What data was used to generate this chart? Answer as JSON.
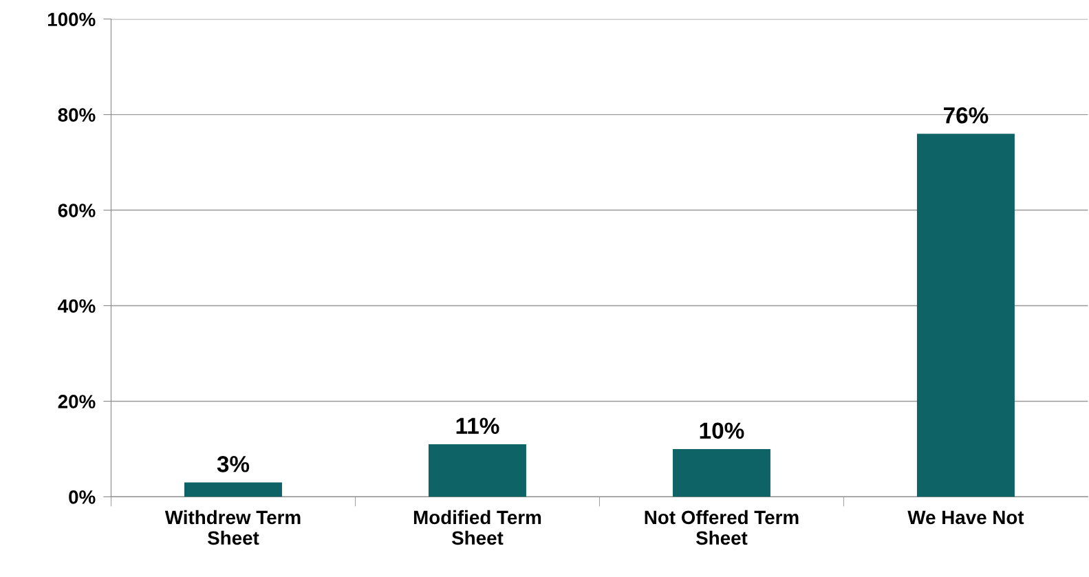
{
  "chart_data": {
    "type": "bar",
    "categories": [
      "Withdrew Term\nSheet",
      "Modified Term\nSheet",
      "Not Offered Term\nSheet",
      "We Have Not"
    ],
    "values": [
      3,
      11,
      10,
      76
    ],
    "value_labels": [
      "3%",
      "11%",
      "10%",
      "76%"
    ],
    "color": "#0e6366",
    "ylim": [
      0,
      100
    ],
    "yticks": [
      {
        "value": 0,
        "label": "0%"
      },
      {
        "value": 20,
        "label": "20%"
      },
      {
        "value": 40,
        "label": "40%"
      },
      {
        "value": 60,
        "label": "60%"
      },
      {
        "value": 80,
        "label": "80%"
      },
      {
        "value": 100,
        "label": "100%"
      }
    ],
    "grid": "y"
  }
}
